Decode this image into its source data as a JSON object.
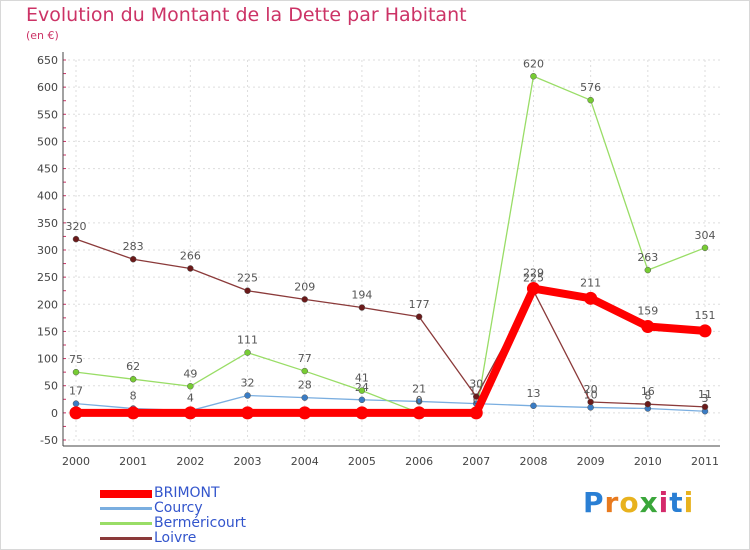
{
  "title": "Evolution du Montant de la Dette par Habitant",
  "subtitle": "(en €)",
  "brand": {
    "text": "Proxiti",
    "letter_colors": [
      "#2a7fd4",
      "#e87a1e",
      "#e8b21e",
      "#3aa63a",
      "#d42a6b",
      "#2a7fd4",
      "#e8b21e"
    ]
  },
  "chart_data": {
    "type": "line",
    "x": [
      "2000",
      "2001",
      "2002",
      "2003",
      "2004",
      "2005",
      "2006",
      "2007",
      "2008",
      "2009",
      "2010",
      "2011"
    ],
    "ylim": [
      -50,
      650
    ],
    "yticks": [
      "-50",
      "0",
      "50",
      "100",
      "150",
      "200",
      "250",
      "300",
      "350",
      "400",
      "450",
      "500",
      "550",
      "600",
      "650"
    ],
    "grid": true,
    "legend_position": "bottom-left",
    "series": [
      {
        "name": "BRIMONT",
        "color": "#ff0000",
        "marker_color": "#ff0000",
        "values": [
          0,
          0,
          0,
          0,
          0,
          0,
          0,
          0,
          229,
          211,
          159,
          151
        ],
        "labels": [
          "",
          "",
          "",
          "",
          "",
          "",
          "",
          "",
          "229",
          "211",
          "159",
          "151"
        ]
      },
      {
        "name": "Courcy",
        "color": "#7aaee0",
        "marker_color": "#3a7cc4",
        "values": [
          17,
          8,
          4,
          32,
          28,
          24,
          21,
          17,
          13,
          10,
          8,
          3
        ],
        "labels": [
          "17",
          "8",
          "4",
          "32",
          "28",
          "24",
          "21",
          "17",
          "13",
          "10",
          "8",
          "3"
        ]
      },
      {
        "name": "Berméricourt",
        "color": "#99dd66",
        "marker_color": "#77cc33",
        "values": [
          75,
          62,
          49,
          111,
          77,
          41,
          0,
          0,
          620,
          576,
          263,
          304
        ],
        "labels": [
          "75",
          "62",
          "49",
          "111",
          "77",
          "41",
          "0",
          "0",
          "620",
          "576",
          "263",
          "304"
        ]
      },
      {
        "name": "Loivre",
        "color": "#8b3a3a",
        "marker_color": "#6b1a1a",
        "values": [
          320,
          283,
          266,
          225,
          209,
          194,
          177,
          30,
          225,
          20,
          16,
          11
        ],
        "labels": [
          "320",
          "283",
          "266",
          "225",
          "209",
          "194",
          "177",
          "30",
          "225",
          "20",
          "16",
          "11"
        ]
      }
    ]
  }
}
